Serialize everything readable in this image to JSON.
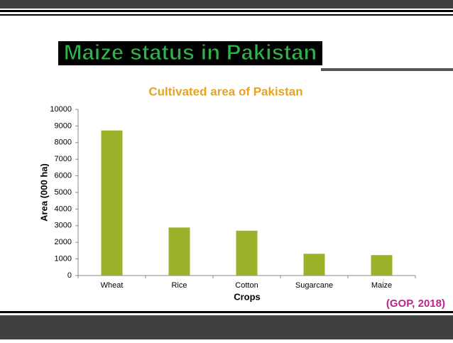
{
  "header": {
    "title": "Maize status in Pakistan"
  },
  "chart_data": {
    "type": "bar",
    "title": "Cultivated area of Pakistan",
    "x_label": "Crops",
    "y_label": "Area (000 ha)",
    "categories": [
      "Wheat",
      "Rice",
      "Cotton",
      "Sugarcane",
      "Maize"
    ],
    "values": [
      8730,
      2890,
      2700,
      1310,
      1230
    ],
    "color": "#9bb22a",
    "ylim": [
      0,
      10000
    ],
    "yticks": [
      0,
      1000,
      2000,
      3000,
      4000,
      5000,
      6000,
      7000,
      8000,
      9000,
      10000
    ],
    "grid": false
  },
  "source": "(GOP, 2018)"
}
